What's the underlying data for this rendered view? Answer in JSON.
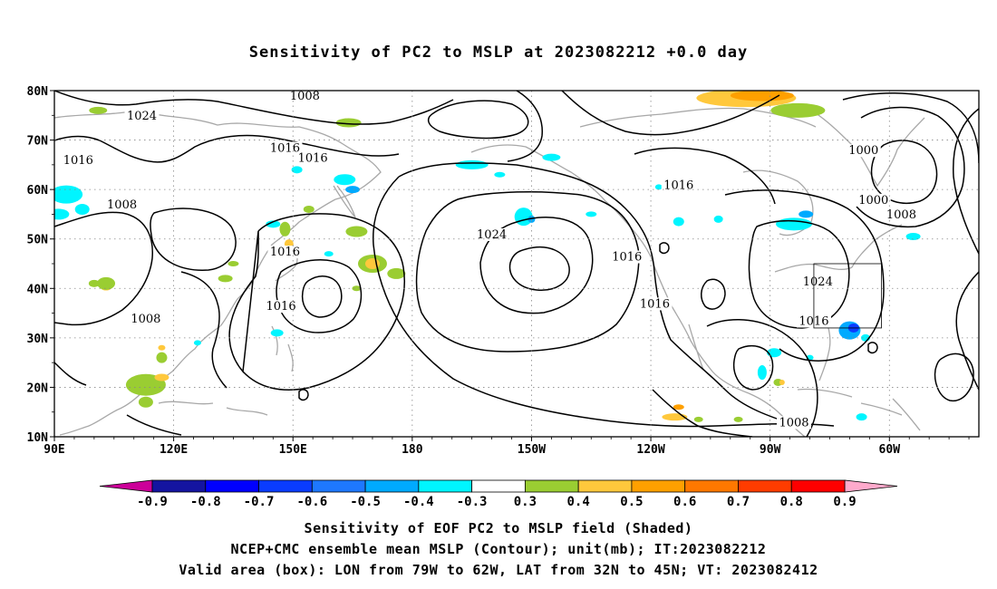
{
  "title": "Sensitivity of PC2 to MSLP at 2023082212 +0.0 day",
  "map": {
    "lon_labels": [
      "90E",
      "120E",
      "150E",
      "180",
      "150W",
      "120W",
      "90W",
      "60W"
    ],
    "lat_labels": [
      "80N",
      "70N",
      "60N",
      "50N",
      "40N",
      "30N",
      "20N",
      "10N"
    ],
    "contour_labels": [
      {
        "text": "1008",
        "lon": 153,
        "lat": 78.5
      },
      {
        "text": "1024",
        "lon": 112,
        "lat": 74.5
      },
      {
        "text": "1016",
        "lon": 148,
        "lat": 68
      },
      {
        "text": "1016",
        "lon": 96,
        "lat": 65.5
      },
      {
        "text": "1016",
        "lon": 155,
        "lat": 66
      },
      {
        "text": "1000",
        "lon": -66.5,
        "lat": 67.5
      },
      {
        "text": "1016",
        "lon": -113,
        "lat": 60.5
      },
      {
        "text": "1000",
        "lon": -64,
        "lat": 57.5
      },
      {
        "text": "1008",
        "lon": -57,
        "lat": 54.5
      },
      {
        "text": "1008",
        "lon": 107,
        "lat": 56.5
      },
      {
        "text": "1024",
        "lon": -160,
        "lat": 50.5
      },
      {
        "text": "1016",
        "lon": -126,
        "lat": 46
      },
      {
        "text": "1016",
        "lon": 148,
        "lat": 47
      },
      {
        "text": "1024",
        "lon": -78,
        "lat": 41
      },
      {
        "text": "1016",
        "lon": 147,
        "lat": 36
      },
      {
        "text": "1016",
        "lon": -119,
        "lat": 36.5
      },
      {
        "text": "1008",
        "lon": 113,
        "lat": 33.5
      },
      {
        "text": "1016",
        "lon": -79,
        "lat": 33
      },
      {
        "text": "1008",
        "lon": -84,
        "lat": 12.5
      }
    ],
    "valid_box": {
      "lon_min": -79,
      "lon_max": -62,
      "lat_min": 32,
      "lat_max": 45
    }
  },
  "colorbar": {
    "labels": [
      "-0.9",
      "-0.8",
      "-0.7",
      "-0.6",
      "-0.5",
      "-0.4",
      "-0.3",
      "0.3",
      "0.4",
      "0.5",
      "0.6",
      "0.7",
      "0.8",
      "0.9"
    ],
    "colors": [
      "#1414a0",
      "#0000ff",
      "#0a3cff",
      "#1e78ff",
      "#00aaff",
      "#00f5ff",
      "#ffffff",
      "#9acd32",
      "#ffc83c",
      "#ffa000",
      "#ff7800",
      "#ff3c00",
      "#ff0000"
    ],
    "low_cap_color": "#cc0099",
    "high_cap_color": "#ffaacc"
  },
  "footer": {
    "line1": "Sensitivity of EOF PC2 to MSLP field (Shaded)",
    "line2": "NCEP+CMC ensemble mean MSLP (Contour); unit(mb); IT:2023082212",
    "line3": "Valid area (box): LON from 79W to 62W, LAT from 32N to 45N; VT: 2023082412"
  }
}
